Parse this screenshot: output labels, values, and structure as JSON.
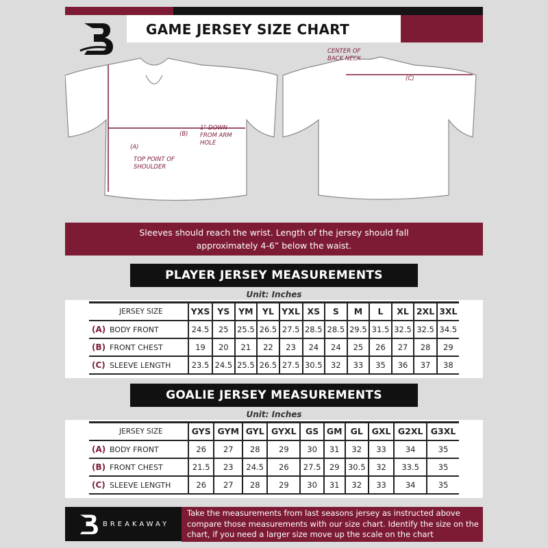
{
  "header": {
    "title": "GAME JERSEY SIZE CHART",
    "logo_letter": "B"
  },
  "diagram": {
    "center_back_neck": "CENTER OF BACK NECK",
    "label_a": "(A)",
    "label_b": "(B)",
    "label_c": "(C)",
    "top_point": "TOP POINT OF SHOULDER",
    "arm_hole": "1\" DOWN FROM ARM HOLE"
  },
  "banner": {
    "line1": "Sleeves should reach the wrist. Length of the jersey should fall",
    "line2": "approximately 4-6” below the waist."
  },
  "player": {
    "title": "PLAYER JERSEY MEASUREMENTS",
    "unit": "Unit: Inches",
    "size_label": "JERSEY SIZE",
    "sizes": [
      "YXS",
      "YS",
      "YM",
      "YL",
      "YXL",
      "XS",
      "S",
      "M",
      "L",
      "XL",
      "2XL",
      "3XL"
    ],
    "rows": [
      {
        "letter": "(A)",
        "name": "BODY FRONT",
        "values": [
          "24.5",
          "25",
          "25.5",
          "26.5",
          "27.5",
          "28.5",
          "28.5",
          "29.5",
          "31.5",
          "32.5",
          "32.5",
          "34.5"
        ]
      },
      {
        "letter": "(B)",
        "name": "FRONT CHEST",
        "values": [
          "19",
          "20",
          "21",
          "22",
          "23",
          "24",
          "24",
          "25",
          "26",
          "27",
          "28",
          "29"
        ]
      },
      {
        "letter": "(C)",
        "name": "SLEEVE LENGTH",
        "values": [
          "23.5",
          "24.5",
          "25.5",
          "26.5",
          "27.5",
          "30.5",
          "32",
          "33",
          "35",
          "36",
          "37",
          "38"
        ]
      }
    ]
  },
  "goalie": {
    "title": "GOALIE JERSEY MEASUREMENTS",
    "unit": "Unit: Inches",
    "size_label": "JERSEY SIZE",
    "sizes": [
      "GYS",
      "GYM",
      "GYL",
      "GYXL",
      "GS",
      "GM",
      "GL",
      "GXL",
      "G2XL",
      "G3XL"
    ],
    "rows": [
      {
        "letter": "(A)",
        "name": "BODY FRONT",
        "values": [
          "26",
          "27",
          "28",
          "29",
          "30",
          "31",
          "32",
          "33",
          "34",
          "35"
        ]
      },
      {
        "letter": "(B)",
        "name": "FRONT CHEST",
        "values": [
          "21.5",
          "23",
          "24.5",
          "26",
          "27.5",
          "29",
          "30.5",
          "32",
          "33.5",
          "35"
        ]
      },
      {
        "letter": "(C)",
        "name": "SLEEVE LENGTH",
        "values": [
          "26",
          "27",
          "28",
          "29",
          "30",
          "31",
          "32",
          "33",
          "34",
          "35"
        ]
      }
    ]
  },
  "footer": {
    "brand": "BREAKAWAY",
    "text": "Take the measurements from last seasons jersey as instructed above compare those measurements  with our size chart. Identify the size on the chart, if you need a larger size move up the scale on the chart"
  },
  "colors": {
    "accent": "#7d1b35",
    "dark": "#141414",
    "background": "#dcdcdc"
  }
}
